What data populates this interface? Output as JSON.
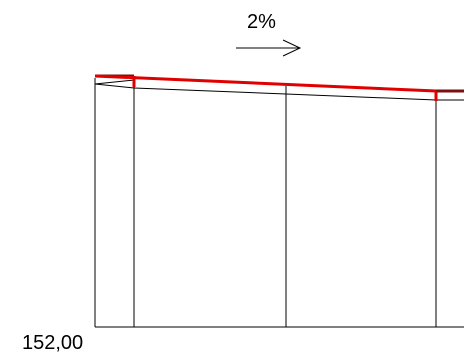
{
  "annotations": {
    "slope_label": "2%",
    "elevation_label": "152,00"
  },
  "colors": {
    "line": "#000000",
    "roof": "#e00000",
    "roof_dark": "#7a1010",
    "background": "#ffffff"
  }
}
